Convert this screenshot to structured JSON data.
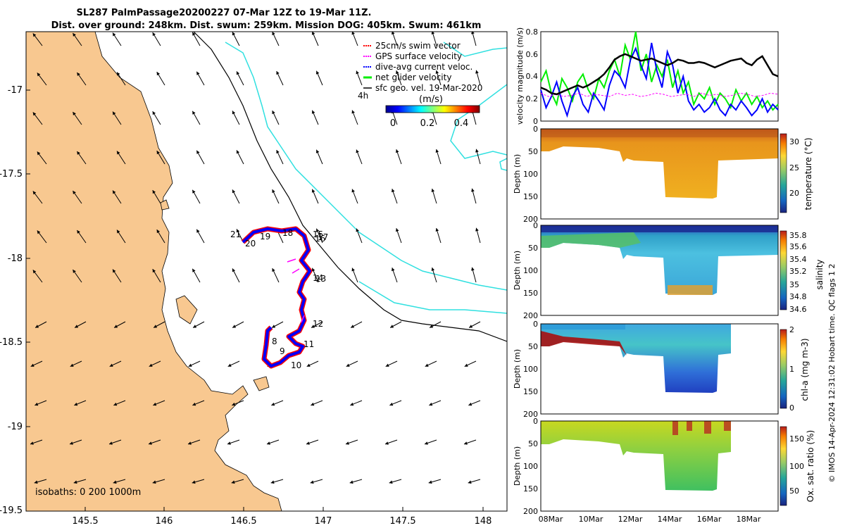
{
  "title": {
    "line1": "SL287 PalmPassage20200227 07-Mar 12Z to 19-Mar 11Z.",
    "line2": "Dist. over ground: 248km. Dist. swum: 259km. Mission DOG: 405km. Swum: 461km"
  },
  "colors": {
    "land": "#f8c890",
    "swim_vector": "#ff0000",
    "gps_velocity": "#ff00ff",
    "dive_avg": "#0000ff",
    "net_velocity": "#00ee00",
    "sfc_geo": "#000000",
    "isobath": "#30e0e0"
  },
  "map": {
    "x_ticks": [
      "145.5",
      "146",
      "146.5",
      "147",
      "147.5",
      "148"
    ],
    "y_ticks": [
      "-17",
      "-17.5",
      "-18",
      "-18.5",
      "-19",
      "-19.5"
    ],
    "isobaths_label": "isobaths: 0   200  1000m",
    "legend": [
      {
        "label": "25cm/s swim vector",
        "color": "#ff0000"
      },
      {
        "label": "GPS surface velocity",
        "color": "#ff00ff"
      },
      {
        "label": "dive-avg current veloc.",
        "color": "#0000ff"
      },
      {
        "label": "net glider velocity",
        "color": "#00ee00"
      },
      {
        "label": "sfc geo. vel. 19-Mar-2020",
        "color": "#000000"
      }
    ],
    "colorbar": {
      "title": "(m/s)",
      "note": "4h",
      "ticks": [
        "0",
        "0.2",
        "0.4"
      ]
    },
    "day_labels": [
      "21",
      "20",
      "19",
      "18",
      "15",
      "16",
      "17",
      "14",
      "13",
      "12",
      "11",
      "10",
      "9",
      "8"
    ]
  },
  "chart_data": [
    {
      "type": "line",
      "title": "velocity magnitude",
      "ylabel": "velocity magnitude (m/s)",
      "ylim": [
        0,
        0.8
      ],
      "y_ticks": [
        "0",
        "0.2",
        "0.4",
        "0.6",
        "0.8"
      ],
      "x_range_days": [
        7.5,
        19.5
      ],
      "series": [
        {
          "name": "dive-avg current veloc.",
          "color": "#0000ff",
          "values": [
            0.28,
            0.12,
            0.22,
            0.35,
            0.18,
            0.05,
            0.22,
            0.3,
            0.15,
            0.08,
            0.25,
            0.18,
            0.1,
            0.32,
            0.45,
            0.4,
            0.3,
            0.55,
            0.65,
            0.5,
            0.38,
            0.7,
            0.45,
            0.3,
            0.62,
            0.5,
            0.25,
            0.4,
            0.18,
            0.1,
            0.15,
            0.08,
            0.12,
            0.2,
            0.1,
            0.05,
            0.15,
            0.1,
            0.18,
            0.12,
            0.05,
            0.1,
            0.2,
            0.08,
            0.15,
            0.1
          ]
        },
        {
          "name": "net glider velocity",
          "color": "#00ee00",
          "values": [
            0.35,
            0.45,
            0.25,
            0.15,
            0.38,
            0.3,
            0.18,
            0.35,
            0.42,
            0.28,
            0.2,
            0.38,
            0.3,
            0.45,
            0.55,
            0.4,
            0.68,
            0.55,
            0.8,
            0.45,
            0.6,
            0.35,
            0.5,
            0.4,
            0.55,
            0.3,
            0.45,
            0.25,
            0.35,
            0.15,
            0.25,
            0.2,
            0.3,
            0.15,
            0.25,
            0.2,
            0.12,
            0.28,
            0.18,
            0.25,
            0.15,
            0.22,
            0.12,
            0.18,
            0.1,
            0.15
          ]
        },
        {
          "name": "GPS surface velocity",
          "color": "#ff00ff",
          "values": [
            0.25,
            0.22,
            0.24,
            0.22,
            0.23,
            0.25,
            0.22,
            0.24,
            0.23,
            0.22,
            0.25,
            0.23,
            0.24,
            0.22,
            0.23,
            0.25,
            0.24,
            0.22,
            0.23,
            0.24,
            0.22,
            0.25,
            0.23,
            0.24,
            0.22,
            0.23,
            0.25,
            0.24,
            0.22,
            0.23,
            0.25,
            0.24
          ]
        },
        {
          "name": "smoothed net velocity",
          "color": "#000000",
          "values": [
            0.3,
            0.28,
            0.25,
            0.24,
            0.26,
            0.28,
            0.3,
            0.32,
            0.3,
            0.32,
            0.35,
            0.38,
            0.42,
            0.48,
            0.55,
            0.58,
            0.6,
            0.58,
            0.56,
            0.54,
            0.55,
            0.56,
            0.54,
            0.52,
            0.5,
            0.52,
            0.55,
            0.54,
            0.52,
            0.52,
            0.53,
            0.52,
            0.5,
            0.48,
            0.5,
            0.52,
            0.54,
            0.55,
            0.56,
            0.52,
            0.5,
            0.55,
            0.58,
            0.5,
            0.42,
            0.4
          ]
        }
      ]
    },
    {
      "type": "heatmap",
      "title": "temperature",
      "ylabel": "Depth (m)",
      "colorbar_label": "temperature (°C)",
      "colorbar_ticks": [
        "20",
        "25",
        "30"
      ],
      "ylim": [
        200,
        0
      ],
      "y_ticks": [
        "0",
        "50",
        "100",
        "150",
        "200"
      ]
    },
    {
      "type": "heatmap",
      "title": "salinity",
      "ylabel": "Depth (m)",
      "colorbar_label": "salinity",
      "colorbar_ticks": [
        "34.6",
        "34.8",
        "35",
        "35.2",
        "35.4",
        "35.6",
        "35.8"
      ],
      "ylim": [
        200,
        0
      ],
      "y_ticks": [
        "0",
        "50",
        "100",
        "150",
        "200"
      ]
    },
    {
      "type": "heatmap",
      "title": "chl-a",
      "ylabel": "Depth (m)",
      "colorbar_label": "chl-a (mg m-3)",
      "colorbar_ticks": [
        "0",
        "1",
        "2"
      ],
      "ylim": [
        200,
        0
      ],
      "y_ticks": [
        "0",
        "50",
        "100",
        "150",
        "200"
      ]
    },
    {
      "type": "heatmap",
      "title": "oxygen saturation",
      "ylabel": "Depth (m)",
      "colorbar_label": "Ox. sat. ratio (%)",
      "colorbar_ticks": [
        "50",
        "100",
        "150"
      ],
      "ylim": [
        200,
        0
      ],
      "y_ticks": [
        "0",
        "50",
        "100",
        "150",
        "200"
      ],
      "x_ticks": [
        "08Mar",
        "10Mar",
        "12Mar",
        "14Mar",
        "16Mar",
        "18Mar"
      ]
    }
  ],
  "credit": "© IMOS 14-Apr-2024 12:31:02 Hobart time. QC flags 1  2"
}
